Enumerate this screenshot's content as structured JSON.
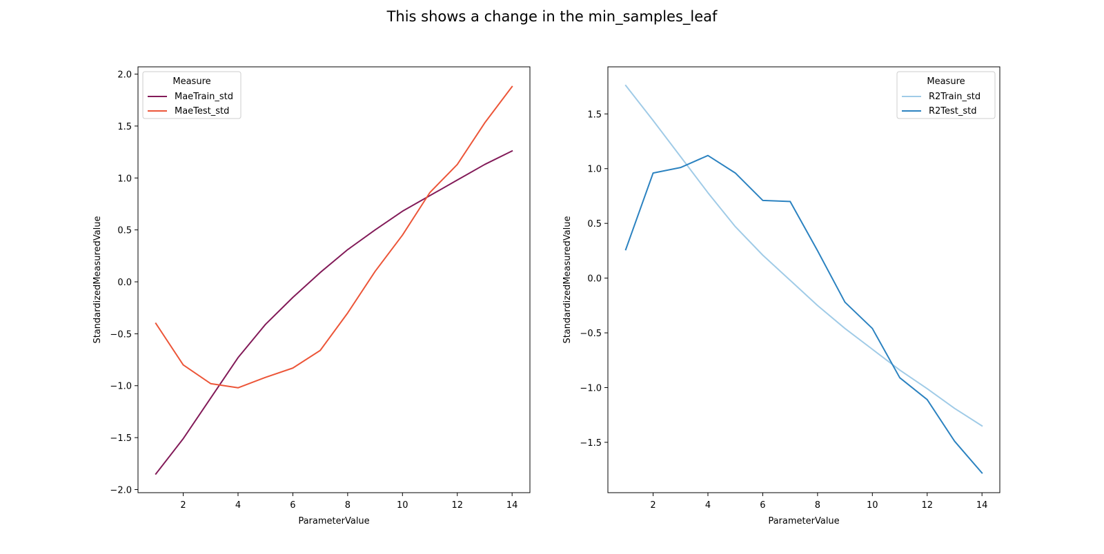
{
  "figure": {
    "suptitle": "This shows a change in the min_samples_leaf"
  },
  "chart_data": [
    {
      "type": "line",
      "xlabel": "ParameterValue",
      "ylabel": "StandardizedMeasuredValue",
      "xlim": [
        0.35,
        14.65
      ],
      "ylim": [
        -2.03,
        2.07
      ],
      "xticks": [
        2,
        4,
        6,
        8,
        10,
        12,
        14
      ],
      "yticks": [
        -2.0,
        -1.5,
        -1.0,
        -0.5,
        0.0,
        0.5,
        1.0,
        1.5,
        2.0
      ],
      "legend": {
        "title": "Measure",
        "placement": "upper-left"
      },
      "x": [
        1,
        2,
        3,
        4,
        5,
        6,
        7,
        8,
        9,
        10,
        11,
        12,
        13,
        14
      ],
      "series": [
        {
          "name": "MaeTrain_std",
          "color": "#821a58",
          "values": [
            -1.85,
            -1.51,
            -1.12,
            -0.73,
            -0.41,
            -0.15,
            0.09,
            0.31,
            0.5,
            0.68,
            0.83,
            0.98,
            1.13,
            1.26
          ]
        },
        {
          "name": "MaeTest_std",
          "color": "#ec5538",
          "values": [
            -0.4,
            -0.8,
            -0.98,
            -1.02,
            -0.92,
            -0.83,
            -0.66,
            -0.3,
            0.1,
            0.45,
            0.86,
            1.13,
            1.53,
            1.88
          ]
        }
      ]
    },
    {
      "type": "line",
      "xlabel": "ParameterValue",
      "ylabel": "StandardizedMeasuredValue",
      "xlim": [
        0.35,
        14.65
      ],
      "ylim": [
        -1.96,
        1.93
      ],
      "xticks": [
        2,
        4,
        6,
        8,
        10,
        12,
        14
      ],
      "yticks": [
        -1.5,
        -1.0,
        -0.5,
        0.0,
        0.5,
        1.0,
        1.5
      ],
      "legend": {
        "title": "Measure",
        "placement": "upper-right"
      },
      "x": [
        1,
        2,
        3,
        4,
        5,
        6,
        7,
        8,
        9,
        10,
        11,
        12,
        13,
        14
      ],
      "series": [
        {
          "name": "R2Train_std",
          "color": "#a0cbe7",
          "values": [
            1.76,
            1.44,
            1.11,
            0.78,
            0.47,
            0.21,
            -0.02,
            -0.25,
            -0.46,
            -0.65,
            -0.84,
            -1.01,
            -1.19,
            -1.35
          ]
        },
        {
          "name": "R2Test_std",
          "color": "#2b82c0",
          "values": [
            0.26,
            0.96,
            1.01,
            1.12,
            0.96,
            0.71,
            0.7,
            0.25,
            -0.22,
            -0.46,
            -0.91,
            -1.11,
            -1.49,
            -1.78
          ]
        }
      ]
    }
  ]
}
